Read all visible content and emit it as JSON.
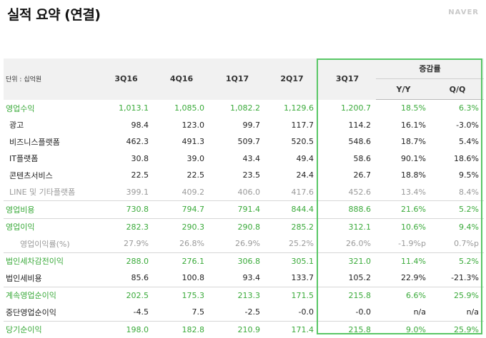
{
  "title": "실적 요약 (연결)",
  "logo": "NAVER",
  "table": {
    "unit_label": "단위 : 십억원",
    "periods": [
      "3Q16",
      "4Q16",
      "1Q17",
      "2Q17",
      "3Q17"
    ],
    "growth_group": "증감률",
    "growth_cols": [
      "Y/Y",
      "Q/Q"
    ],
    "rows": [
      {
        "label": "영업수익",
        "values": [
          "1,013.1",
          "1,085.0",
          "1,082.2",
          "1,129.6",
          "1,200.7",
          "18.5%",
          "6.3%"
        ]
      },
      {
        "label": "광고",
        "values": [
          "98.4",
          "123.0",
          "99.7",
          "117.7",
          "114.2",
          "16.1%",
          "-3.0%"
        ]
      },
      {
        "label": "비즈니스플랫폼",
        "values": [
          "462.3",
          "491.3",
          "509.7",
          "520.5",
          "548.6",
          "18.7%",
          "5.4%"
        ]
      },
      {
        "label": "IT플랫폼",
        "values": [
          "30.8",
          "39.0",
          "43.4",
          "49.4",
          "58.6",
          "90.1%",
          "18.6%"
        ]
      },
      {
        "label": "콘텐츠서비스",
        "values": [
          "22.5",
          "22.5",
          "23.5",
          "24.4",
          "26.7",
          "18.8%",
          "9.5%"
        ]
      },
      {
        "label": "LINE 및 기타플랫폼",
        "values": [
          "399.1",
          "409.2",
          "406.0",
          "417.6",
          "452.6",
          "13.4%",
          "8.4%"
        ]
      },
      {
        "label": "영업비용",
        "values": [
          "730.8",
          "794.7",
          "791.4",
          "844.4",
          "888.6",
          "21.6%",
          "5.2%"
        ]
      },
      {
        "label": "영업이익",
        "values": [
          "282.3",
          "290.3",
          "290.8",
          "285.2",
          "312.1",
          "10.6%",
          "9.4%"
        ]
      },
      {
        "label": "영업이익률(%)",
        "values": [
          "27.9%",
          "26.8%",
          "26.9%",
          "25.2%",
          "26.0%",
          "-1.9%p",
          "0.7%p"
        ]
      },
      {
        "label": "법인세차감전이익",
        "values": [
          "288.0",
          "276.1",
          "306.8",
          "305.1",
          "321.0",
          "11.4%",
          "5.2%"
        ]
      },
      {
        "label": "법인세비용",
        "values": [
          "85.6",
          "100.8",
          "93.4",
          "133.7",
          "105.2",
          "22.9%",
          "-21.3%"
        ]
      },
      {
        "label": "계속영업순이익",
        "values": [
          "202.5",
          "175.3",
          "213.3",
          "171.5",
          "215.8",
          "6.6%",
          "25.9%"
        ]
      },
      {
        "label": "중단영업순이익",
        "values": [
          "-4.5",
          "7.5",
          "-2.5",
          "-0.0",
          "-0.0",
          "n/a",
          "n/a"
        ]
      },
      {
        "label": "당기순이익",
        "values": [
          "198.0",
          "182.8",
          "210.9",
          "171.4",
          "215.8",
          "9.0%",
          "25.9%"
        ]
      }
    ]
  }
}
